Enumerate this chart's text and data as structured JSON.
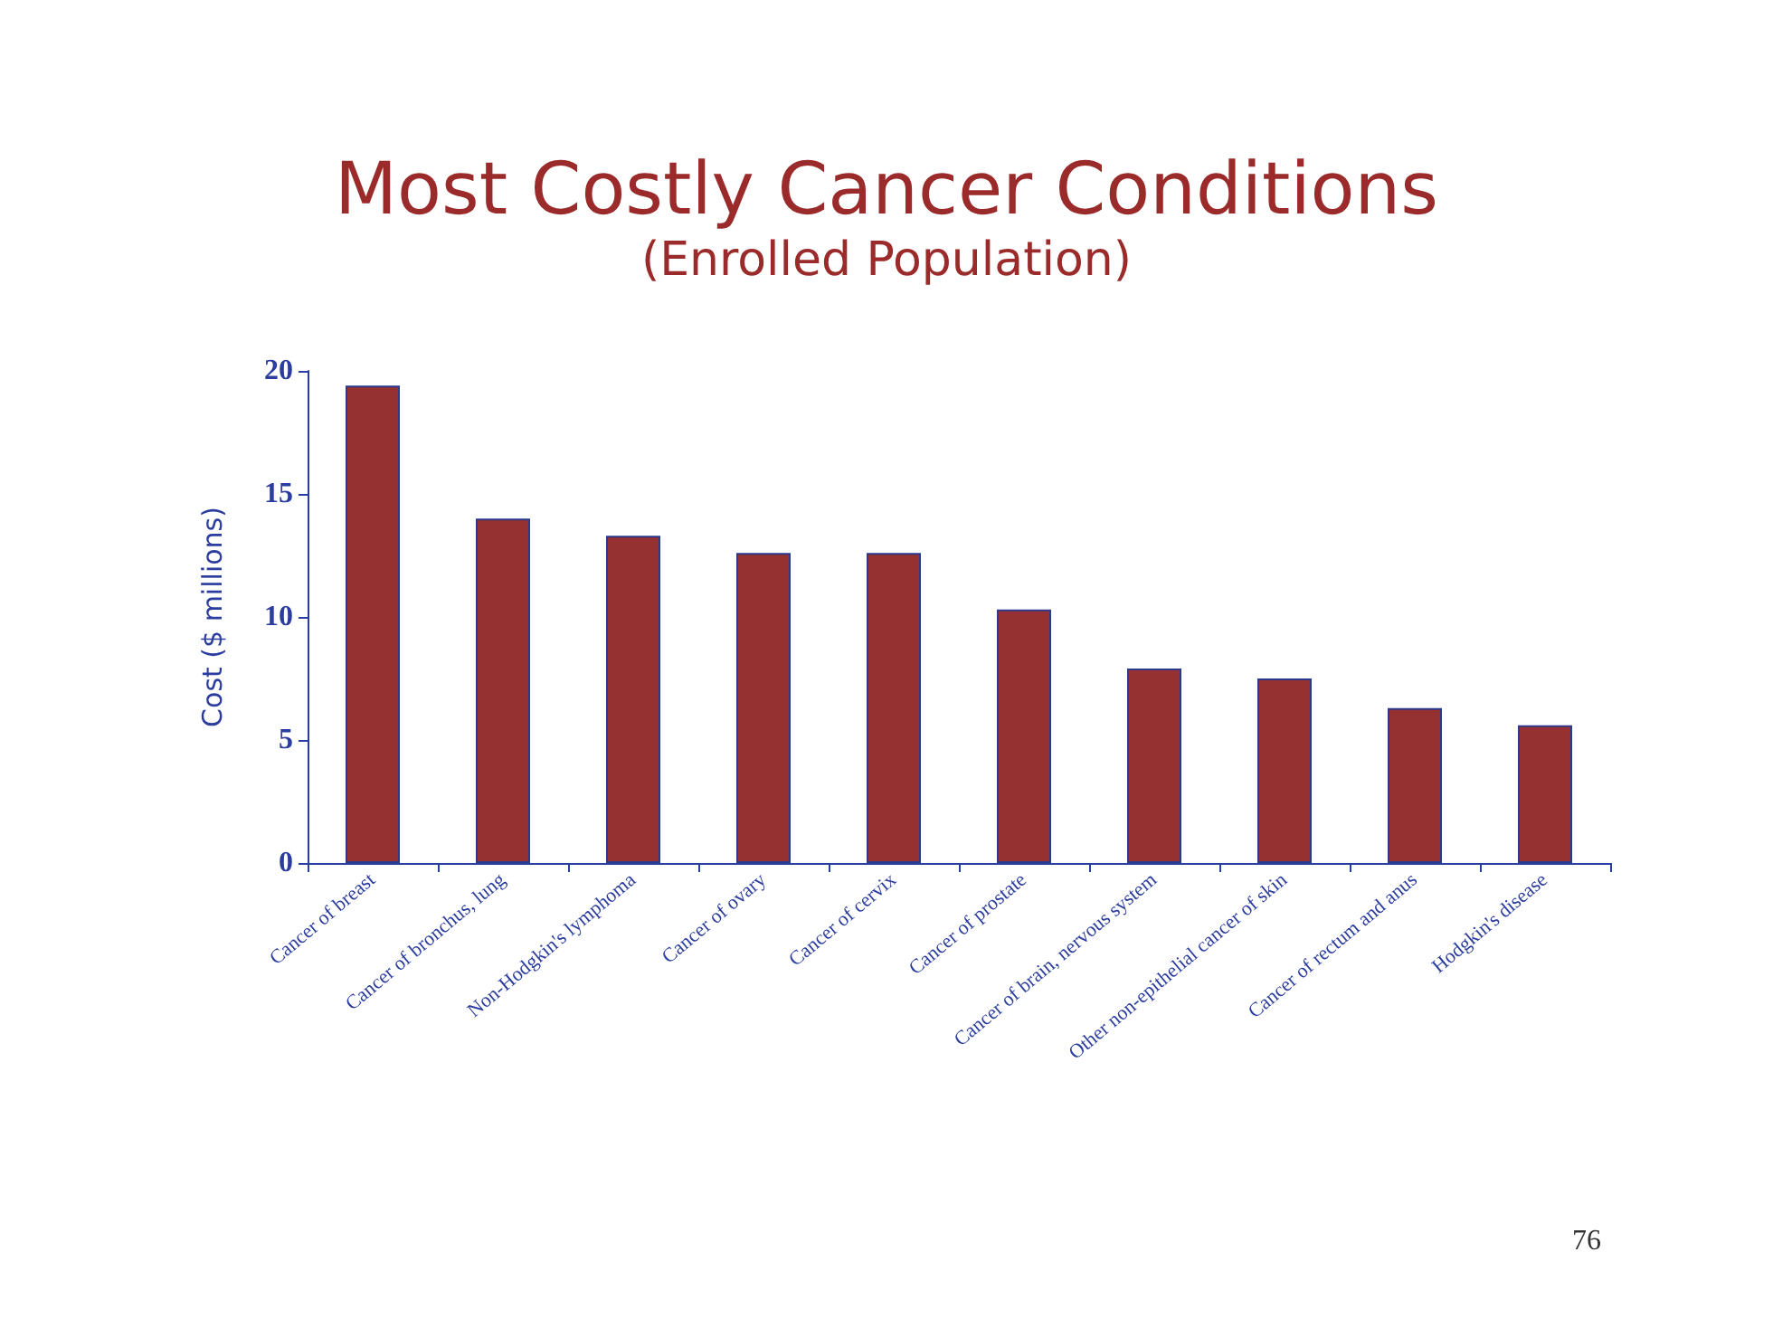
{
  "chart_data": {
    "type": "bar",
    "title": "Most Costly Cancer Conditions",
    "subtitle": "(Enrolled Population)",
    "ylabel": "Cost ($ millions)",
    "categories": [
      "Cancer of breast",
      "Cancer of bronchus, lung",
      "Non-Hodgkin's lymphoma",
      "Cancer of ovary",
      "Cancer of cervix",
      "Cancer of prostate",
      "Cancer of brain, nervous system",
      "Other non-epithelial cancer of skin",
      "Cancer of rectum and anus",
      "Hodgkin's disease"
    ],
    "values": [
      19.4,
      14.0,
      13.3,
      12.6,
      12.6,
      10.3,
      7.9,
      7.5,
      6.3,
      5.6
    ],
    "color": "#953130",
    "ylim": [
      0,
      20
    ],
    "yticks": [
      0,
      5,
      10,
      15,
      20
    ],
    "grid": false,
    "annotations": [
      "76"
    ]
  }
}
